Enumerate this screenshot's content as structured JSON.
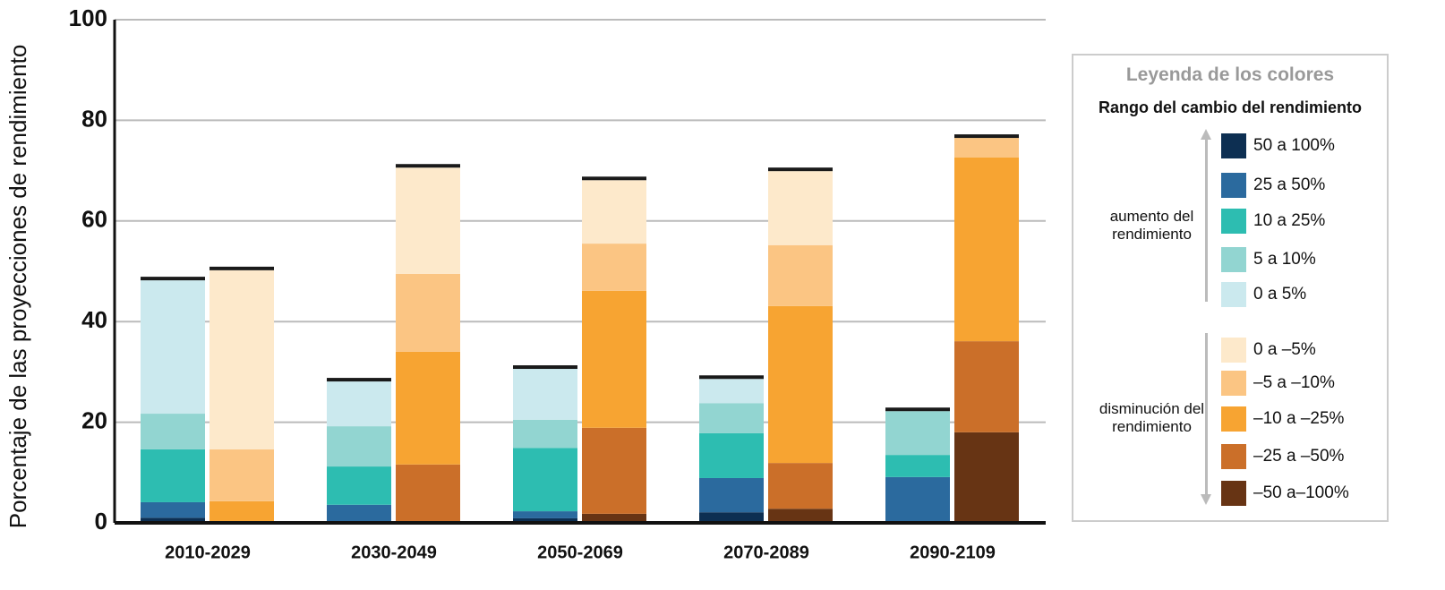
{
  "chart_data": {
    "type": "grouped-stacked-bar",
    "y_label": "Porcentaje de las proyecciones de rendimiento",
    "categories": [
      "2010-2029",
      "2030-2049",
      "2050-2069",
      "2070-2089",
      "2090-2109"
    ],
    "ylim": [
      0,
      100
    ],
    "yticks": [
      0,
      20,
      40,
      60,
      80,
      100
    ],
    "grid": true,
    "legend": {
      "title": "Leyenda de los colores",
      "subtitle": "Rango del cambio del rendimiento"
    },
    "groups": [
      {
        "label": "aumento del rendimiento",
        "series": [
          {
            "name": "50 a 100%",
            "color": "#0d2f52",
            "values": [
              1.0,
              0,
              0.9,
              2.1,
              0
            ]
          },
          {
            "name": "25 a 50%",
            "color": "#2b6a9e",
            "values": [
              3.1,
              3.6,
              1.4,
              6.8,
              9.1
            ]
          },
          {
            "name": "10 a 25%",
            "color": "#2dbdb1",
            "values": [
              10.5,
              7.6,
              12.6,
              8.9,
              4.4
            ]
          },
          {
            "name": "5 a 10%",
            "color": "#92d5d1",
            "values": [
              7.1,
              8.0,
              5.6,
              6.0,
              8.7
            ]
          },
          {
            "name": "0 a 5%",
            "color": "#cbe9ee",
            "values": [
              26.5,
              8.9,
              10.1,
              4.8,
              0
            ]
          }
        ]
      },
      {
        "label": "disminución del rendimiento",
        "series": [
          {
            "name": "0 a –5%",
            "color": "#fde9cb",
            "values": [
              35.6,
              21.1,
              12.6,
              14.7,
              0
            ]
          },
          {
            "name": "–5 a –10%",
            "color": "#fbc583",
            "values": [
              10.3,
              15.5,
              9.4,
              12.1,
              3.9
            ]
          },
          {
            "name": "–10 a –25%",
            "color": "#f7a432",
            "values": [
              4.3,
              22.4,
              27.2,
              31.2,
              36.5
            ]
          },
          {
            "name": "–25 a –50%",
            "color": "#cb6f29",
            "values": [
              0,
              11.6,
              17.1,
              9.1,
              18.1
            ]
          },
          {
            "name": "–50 a–100%",
            "color": "#673414",
            "values": [
              0,
              0,
              1.8,
              2.8,
              18.0
            ]
          }
        ]
      }
    ]
  }
}
